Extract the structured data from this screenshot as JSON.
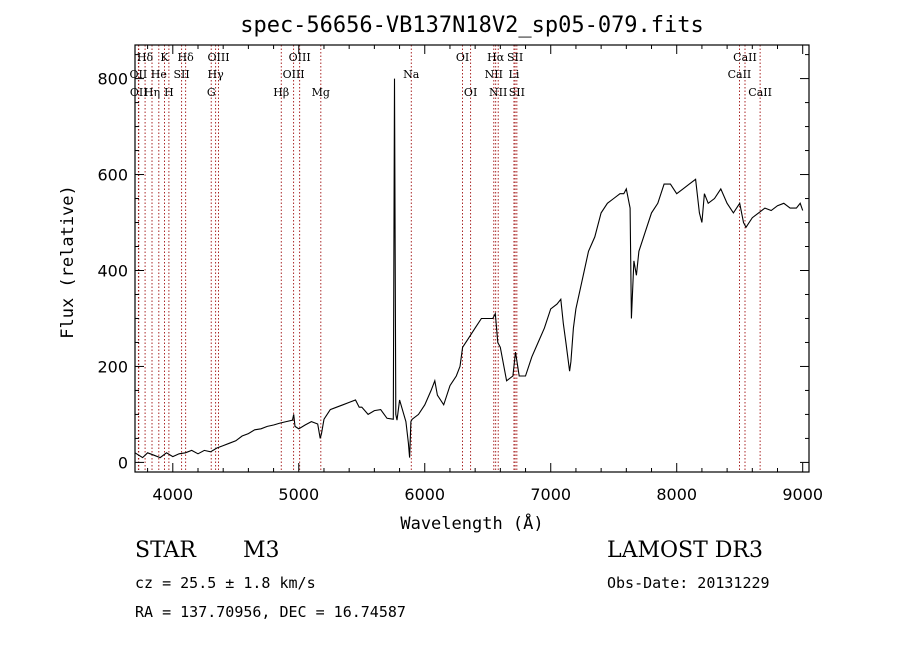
{
  "chart_data": {
    "type": "line",
    "title": "spec-56656-VB137N18V2_sp05-079.fits",
    "xlabel": "Wavelength (Å)",
    "ylabel": "Flux (relative)",
    "xlim": [
      3700,
      9050
    ],
    "ylim": [
      -20,
      870
    ],
    "x_ticks": [
      4000,
      5000,
      6000,
      7000,
      8000,
      9000
    ],
    "x_tick_labels": [
      "4000",
      "5000",
      "6000",
      "7000",
      "8000",
      "9000"
    ],
    "y_ticks": [
      0,
      200,
      400,
      600,
      800
    ],
    "y_tick_labels": [
      "0",
      "200",
      "400",
      "600",
      "800"
    ],
    "series": [
      {
        "name": "flux",
        "x": [
          3700,
          3760,
          3800,
          3850,
          3900,
          3950,
          4000,
          4050,
          4100,
          4150,
          4200,
          4250,
          4300,
          4350,
          4400,
          4450,
          4500,
          4550,
          4600,
          4650,
          4700,
          4750,
          4800,
          4850,
          4900,
          4950,
          4960,
          4970,
          5000,
          5050,
          5100,
          5150,
          5170,
          5180,
          5200,
          5250,
          5300,
          5350,
          5400,
          5450,
          5480,
          5500,
          5550,
          5600,
          5650,
          5700,
          5750,
          5760,
          5770,
          5780,
          5800,
          5850,
          5870,
          5880,
          5890,
          5900,
          5950,
          6000,
          6050,
          6080,
          6100,
          6150,
          6200,
          6250,
          6280,
          6300,
          6350,
          6400,
          6450,
          6500,
          6540,
          6560,
          6580,
          6600,
          6650,
          6700,
          6720,
          6750,
          6800,
          6850,
          6900,
          6950,
          7000,
          7050,
          7080,
          7100,
          7120,
          7150,
          7160,
          7180,
          7200,
          7250,
          7300,
          7350,
          7400,
          7450,
          7500,
          7550,
          7580,
          7600,
          7630,
          7640,
          7660,
          7680,
          7700,
          7750,
          7800,
          7850,
          7900,
          7950,
          8000,
          8050,
          8100,
          8150,
          8180,
          8200,
          8220,
          8250,
          8300,
          8350,
          8400,
          8450,
          8500,
          8530,
          8550,
          8600,
          8650,
          8700,
          8750,
          8800,
          8850,
          8900,
          8950,
          8980,
          9000
        ],
        "values": [
          20,
          10,
          20,
          15,
          10,
          20,
          12,
          18,
          20,
          25,
          18,
          25,
          22,
          30,
          35,
          40,
          45,
          55,
          60,
          68,
          70,
          75,
          78,
          82,
          85,
          88,
          100,
          75,
          70,
          78,
          85,
          80,
          50,
          60,
          90,
          110,
          115,
          120,
          125,
          130,
          115,
          115,
          100,
          108,
          110,
          92,
          90,
          800,
          100,
          88,
          130,
          85,
          40,
          10,
          85,
          90,
          100,
          120,
          150,
          170,
          140,
          120,
          160,
          180,
          200,
          240,
          260,
          280,
          300,
          300,
          300,
          310,
          250,
          240,
          170,
          180,
          230,
          180,
          180,
          220,
          250,
          280,
          320,
          330,
          340,
          290,
          250,
          190,
          210,
          280,
          320,
          380,
          440,
          470,
          520,
          540,
          550,
          560,
          560,
          570,
          530,
          300,
          420,
          390,
          440,
          480,
          520,
          540,
          580,
          580,
          560,
          570,
          580,
          590,
          520,
          500,
          560,
          540,
          550,
          570,
          540,
          520,
          540,
          500,
          490,
          510,
          520,
          530,
          525,
          535,
          540,
          530,
          530,
          540,
          525
        ]
      }
    ],
    "line_annotations": [
      {
        "label": "Hδ",
        "x": 3780,
        "row": 1
      },
      {
        "label": "OII",
        "x": 3727,
        "row": 2
      },
      {
        "label": "OII",
        "x": 3730,
        "row": 3
      },
      {
        "label": "He",
        "x": 3889,
        "row": 2
      },
      {
        "label": "Hη",
        "x": 3835,
        "row": 3
      },
      {
        "label": "K",
        "x": 3934,
        "row": 1
      },
      {
        "label": "SII",
        "x": 4070,
        "row": 2
      },
      {
        "label": "H",
        "x": 3969,
        "row": 3
      },
      {
        "label": "Hδ",
        "x": 4102,
        "row": 1
      },
      {
        "label": "OIII",
        "x": 4363,
        "row": 1
      },
      {
        "label": "Hγ",
        "x": 4340,
        "row": 2
      },
      {
        "label": "G",
        "x": 4305,
        "row": 3
      },
      {
        "label": "Hβ",
        "x": 4861,
        "row": 3
      },
      {
        "label": "OIII",
        "x": 5007,
        "row": 1
      },
      {
        "label": "OIII",
        "x": 4959,
        "row": 2
      },
      {
        "label": "Mg",
        "x": 5175,
        "row": 3
      },
      {
        "label": "Na",
        "x": 5893,
        "row": 2
      },
      {
        "label": "OI",
        "x": 6300,
        "row": 1
      },
      {
        "label": "OI",
        "x": 6364,
        "row": 3
      },
      {
        "label": "Hα",
        "x": 6563,
        "row": 1
      },
      {
        "label": "NII",
        "x": 6548,
        "row": 2
      },
      {
        "label": "NII",
        "x": 6583,
        "row": 3
      },
      {
        "label": "SII",
        "x": 6717,
        "row": 1
      },
      {
        "label": "Li",
        "x": 6708,
        "row": 2
      },
      {
        "label": "SII",
        "x": 6731,
        "row": 3
      },
      {
        "label": "CaII",
        "x": 8542,
        "row": 1
      },
      {
        "label": "CaII",
        "x": 8498,
        "row": 2
      },
      {
        "label": "CaII",
        "x": 8662,
        "row": 3
      }
    ],
    "line_colors": {
      "spectrum": "#000000",
      "markers": "#a01010"
    }
  },
  "info": {
    "class": "STAR",
    "subclass": "M3",
    "survey": "LAMOST DR3",
    "cz": "cz = 25.5 ± 1.8 km/s",
    "obs_date": "Obs-Date: 20131229",
    "coords": "RA = 137.70956, DEC =  16.74587"
  }
}
